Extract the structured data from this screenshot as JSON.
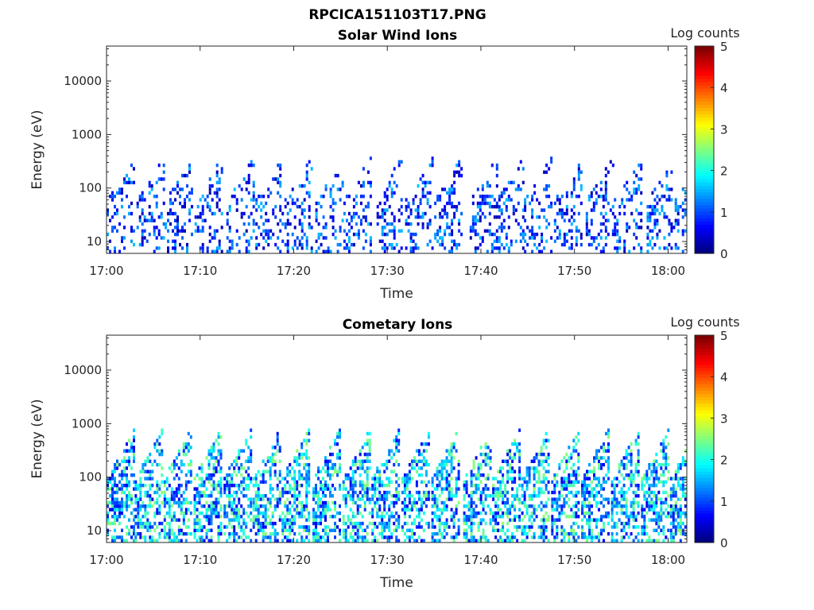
{
  "figure_title": "RPCICA151103T17.PNG",
  "chart_data": [
    {
      "type": "heatmap",
      "title": "Solar Wind Ions",
      "xlabel": "Time",
      "ylabel": "Energy (eV)",
      "x_ticks": [
        "17:00",
        "17:10",
        "17:20",
        "17:30",
        "17:40",
        "17:50",
        "18:00"
      ],
      "y_ticks": [
        "10",
        "100",
        "1000",
        "10000"
      ],
      "y_scale": "log",
      "ylim": [
        6,
        45000
      ],
      "x_minutes_range": [
        0,
        62
      ],
      "colorbar": {
        "label": "Log counts",
        "min": 0,
        "max": 5,
        "ticks": [
          "0",
          "1",
          "2",
          "3",
          "4",
          "5"
        ],
        "colormap": "jet"
      },
      "sweeps_minutes": [
        0,
        3.2,
        6.2,
        9.4,
        12.8,
        15.9,
        19.0,
        22.3,
        25.3,
        28.6,
        31.9,
        35.0,
        38.8,
        41.6,
        44.6,
        47.8,
        51.2,
        54.2,
        57.7,
        60.7
      ],
      "level_range": [
        0.2,
        1.6
      ],
      "energy_range_ev": [
        6,
        400
      ]
    },
    {
      "type": "heatmap",
      "title": "Cometary Ions",
      "xlabel": "Time",
      "ylabel": "Energy (eV)",
      "x_ticks": [
        "17:00",
        "17:10",
        "17:20",
        "17:30",
        "17:40",
        "17:50",
        "18:00"
      ],
      "y_ticks": [
        "10",
        "100",
        "1000",
        "10000"
      ],
      "y_scale": "log",
      "ylim": [
        6,
        45000
      ],
      "x_minutes_range": [
        0,
        62
      ],
      "colorbar": {
        "label": "Log counts",
        "min": 0,
        "max": 5,
        "ticks": [
          "0",
          "1",
          "2",
          "3",
          "4",
          "5"
        ],
        "colormap": "jet"
      },
      "sweeps_minutes": [
        0,
        3.0,
        6.1,
        9.3,
        12.5,
        15.6,
        18.7,
        22.0,
        25.2,
        28.3,
        31.5,
        34.7,
        38.1,
        41.2,
        44.3,
        47.5,
        50.7,
        53.9,
        57.1,
        60.2
      ],
      "level_range": [
        0.5,
        2.6
      ],
      "energy_range_ev": [
        6,
        900
      ]
    }
  ]
}
